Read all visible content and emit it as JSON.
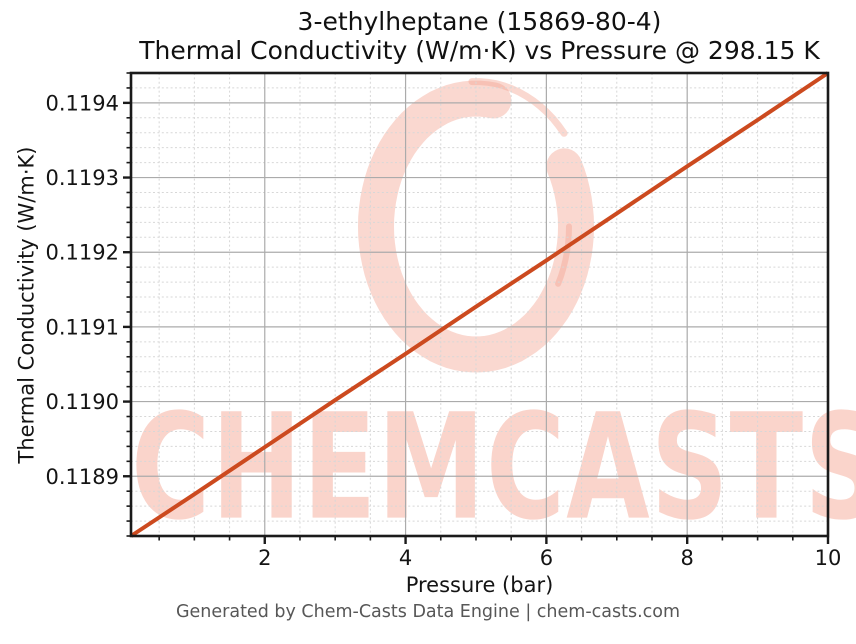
{
  "figure": {
    "title_line1": "3-ethylheptane (15869-80-4)",
    "title_line2": "Thermal Conductivity (W/m·K) vs Pressure @ 298.15 K",
    "footer": "Generated by Chem-Casts Data Engine | chem-casts.com"
  },
  "watermark": {
    "text": "CHEMCASTS",
    "color": "#f4a28e"
  },
  "chart_data": {
    "type": "line",
    "title": "3-ethylheptane (15869-80-4) — Thermal Conductivity (W/m·K) vs Pressure @ 298.15 K",
    "xlabel": "Pressure (bar)",
    "ylabel": "Thermal Conductivity (W/m·K)",
    "xlim": [
      0.1,
      10
    ],
    "ylim": [
      0.11882,
      0.11944
    ],
    "x_major_ticks": [
      2,
      4,
      6,
      8,
      10
    ],
    "x_minor_step": 0.5,
    "y_major_ticks": [
      0.1189,
      0.119,
      0.1191,
      0.1192,
      0.1193,
      0.1194
    ],
    "y_minor_step": 2e-05,
    "y_tick_format_decimals": 4,
    "grid": {
      "major": "solid",
      "minor": "dashed"
    },
    "legend": false,
    "axis_color": "#1a1a1a",
    "major_grid_color": "#ababab",
    "minor_grid_color": "#d7d7d7",
    "series": [
      {
        "name": "Thermal conductivity @ 298.15 K",
        "color": "#cc4a1f",
        "x": [
          0.1,
          1,
          2,
          3,
          4,
          5,
          6,
          7,
          8,
          9,
          10
        ],
        "y": [
          0.11882,
          0.118876,
          0.118939,
          0.119002,
          0.119064,
          0.119127,
          0.119189,
          0.119252,
          0.119315,
          0.119377,
          0.11944
        ]
      }
    ]
  }
}
